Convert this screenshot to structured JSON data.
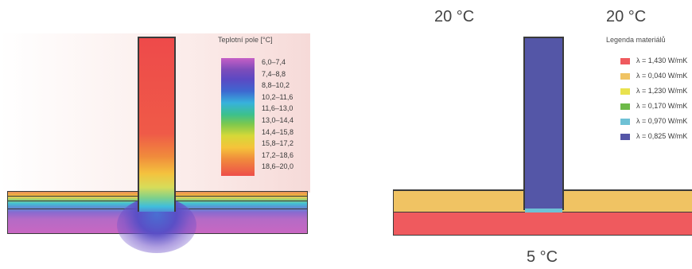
{
  "thermal_field": {
    "legend_title": "Teplotní pole [°C]",
    "scale": [
      "6,0–7,4",
      "7,4–8,8",
      "8,8–10,2",
      "10,2–11,6",
      "11,6–13,0",
      "13,0–14,4",
      "14,4–15,8",
      "15,8–17,2",
      "17,2–18,6",
      "18,6–20,0"
    ]
  },
  "materials": {
    "legend_title": "Legenda materiálů",
    "items": [
      {
        "label": "λ = 1,430 W/mK",
        "color": "#ef5a5e"
      },
      {
        "label": "λ = 0,040 W/mK",
        "color": "#f0c363"
      },
      {
        "label": "λ = 1,230 W/mK",
        "color": "#e9e24e"
      },
      {
        "label": "λ = 0,170 W/mK",
        "color": "#6dba48"
      },
      {
        "label": "λ = 0,970 W/mK",
        "color": "#6ec1d5"
      },
      {
        "label": "λ = 0,825 W/mK",
        "color": "#5456a7"
      }
    ],
    "temp_left": "20 °C",
    "temp_right": "20 °C",
    "temp_bottom": "5 °C"
  }
}
